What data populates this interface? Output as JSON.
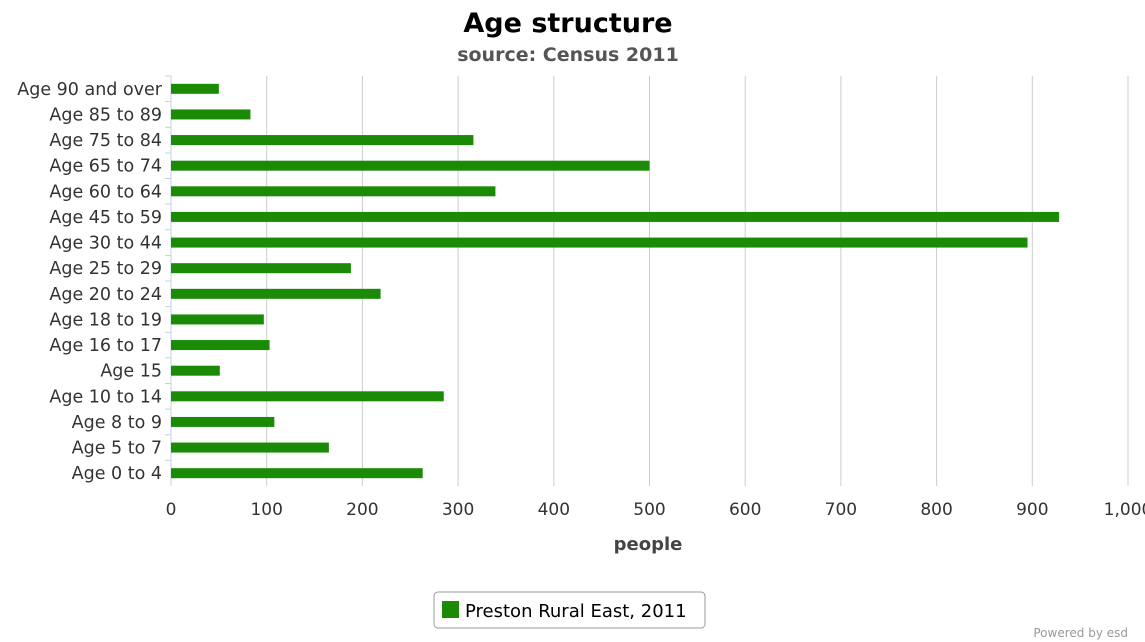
{
  "chart_data": {
    "type": "bar",
    "orientation": "horizontal",
    "title": "Age structure",
    "subtitle": "source: Census 2011",
    "xlabel": "people",
    "ylabel": "",
    "xlim": [
      0,
      1000
    ],
    "ticks": [
      "0",
      "100",
      "200",
      "300",
      "400",
      "500",
      "600",
      "700",
      "800",
      "900",
      "1,000"
    ],
    "tick_values": [
      0,
      100,
      200,
      300,
      400,
      500,
      600,
      700,
      800,
      900,
      1000
    ],
    "grid": true,
    "legend_position": "bottom-center",
    "categories": [
      "Age 90 and over",
      "Age 85 to 89",
      "Age 75 to 84",
      "Age 65 to 74",
      "Age 60 to 64",
      "Age 45 to 59",
      "Age 30 to 44",
      "Age 25 to 29",
      "Age 20 to 24",
      "Age 18 to 19",
      "Age 16 to 17",
      "Age 15",
      "Age 10 to 14",
      "Age 8 to 9",
      "Age 5 to 7",
      "Age 0 to 4"
    ],
    "series": [
      {
        "name": "Preston Rural East, 2011",
        "color": "#1a8a07",
        "values": [
          50,
          83,
          316,
          500,
          339,
          928,
          895,
          188,
          219,
          97,
          103,
          51,
          285,
          108,
          165,
          263
        ]
      }
    ]
  },
  "credit": "Powered by esd"
}
